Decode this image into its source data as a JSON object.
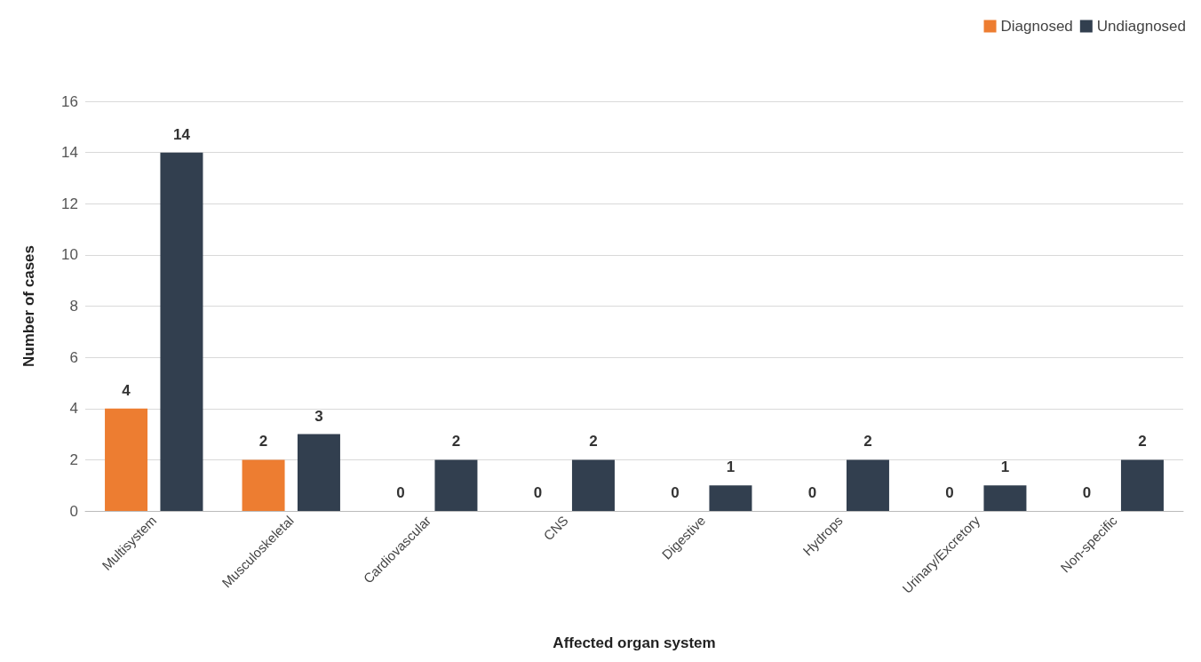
{
  "chart_data": {
    "type": "bar",
    "xlabel": "Affected organ system",
    "ylabel": "Number of cases",
    "categories": [
      "Multisystem",
      "Musculoskeletal",
      "Cardiovascular",
      "CNS",
      "Digestive",
      "Hydrops",
      "Urinary/Excretory",
      "Non-specific"
    ],
    "series": [
      {
        "name": "Diagnosed",
        "color": "#ed7d31",
        "values": [
          4,
          2,
          0,
          0,
          0,
          0,
          0,
          0
        ]
      },
      {
        "name": "Undiagnosed",
        "color": "#323f4f",
        "values": [
          14,
          3,
          2,
          2,
          1,
          2,
          1,
          2
        ]
      }
    ],
    "ylim": [
      0,
      16
    ],
    "yticks": [
      0,
      2,
      4,
      6,
      8,
      10,
      12,
      14,
      16
    ],
    "grid": "y",
    "legend": "top right",
    "data_labels": true
  }
}
